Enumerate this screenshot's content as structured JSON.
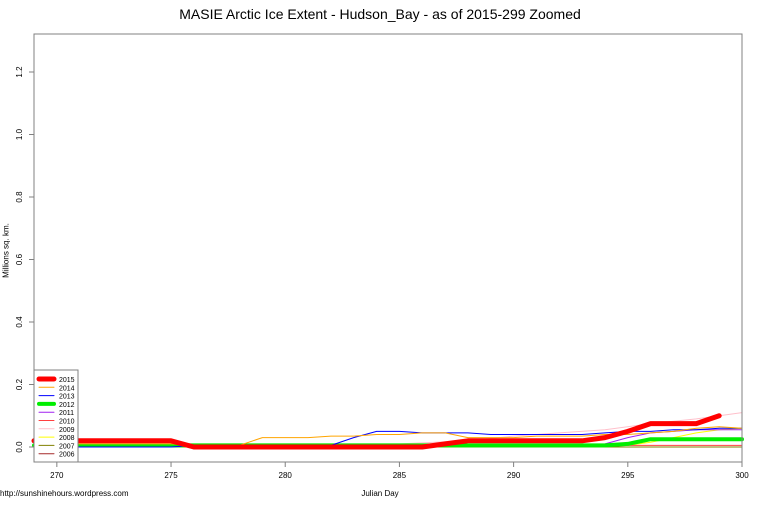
{
  "chart_data": {
    "type": "line",
    "title": "MASIE Arctic Ice Extent - Hudson_Bay - as of 2015-299 Zoomed",
    "xlabel": "Julian Day",
    "ylabel": "Millions sq. km.",
    "credit": "http://sunshinehours.wordpress.com",
    "xlim": [
      269,
      300
    ],
    "ylim": [
      -0.05,
      1.32
    ],
    "x_ticks": [
      270,
      275,
      280,
      285,
      290,
      295,
      300
    ],
    "y_ticks": [
      "0.0",
      "0.2",
      "0.4",
      "0.6",
      "0.8",
      "1.0",
      "1.2"
    ],
    "grid": false,
    "legend_position": "bottom-left",
    "series": [
      {
        "name": "2015",
        "color": "#ff0000",
        "width": 5,
        "x": [
          269,
          270,
          271,
          272,
          273,
          274,
          275,
          276,
          277,
          278,
          279,
          280,
          281,
          282,
          283,
          284,
          285,
          286,
          287,
          288,
          289,
          290,
          291,
          292,
          293,
          294,
          295,
          296,
          297,
          298,
          299
        ],
        "values": [
          0.02,
          0.02,
          0.02,
          0.02,
          0.02,
          0.02,
          0.02,
          0.0,
          0.0,
          0.0,
          0.0,
          0.0,
          0.0,
          0.0,
          0.0,
          0.0,
          0.0,
          0.0,
          0.01,
          0.02,
          0.02,
          0.02,
          0.02,
          0.02,
          0.02,
          0.03,
          0.05,
          0.075,
          0.075,
          0.075,
          0.1
        ]
      },
      {
        "name": "2014",
        "color": "#ffa500",
        "width": 1,
        "x": [
          269,
          270,
          271,
          272,
          273,
          274,
          275,
          276,
          277,
          278,
          279,
          280,
          281,
          282,
          283,
          284,
          285,
          286,
          287,
          288,
          289,
          290,
          291,
          292,
          293,
          294,
          295,
          296,
          297,
          298,
          299,
          300
        ],
        "values": [
          0.01,
          0.01,
          0.01,
          0.01,
          0.01,
          0.01,
          0.01,
          0.005,
          0.005,
          0.005,
          0.03,
          0.03,
          0.03,
          0.035,
          0.035,
          0.04,
          0.04,
          0.045,
          0.045,
          0.03,
          0.03,
          0.03,
          0.035,
          0.035,
          0.035,
          0.04,
          0.04,
          0.045,
          0.05,
          0.06,
          0.065,
          0.06
        ]
      },
      {
        "name": "2013",
        "color": "#0000ff",
        "width": 1,
        "x": [
          269,
          270,
          271,
          272,
          273,
          274,
          275,
          276,
          277,
          278,
          279,
          280,
          281,
          282,
          283,
          284,
          285,
          286,
          287,
          288,
          289,
          290,
          291,
          292,
          293,
          294,
          295,
          296,
          297,
          298,
          299,
          300
        ],
        "values": [
          0.0,
          0.0,
          0.0,
          0.0,
          0.0,
          0.0,
          0.0,
          0.005,
          0.005,
          0.005,
          0.005,
          0.005,
          0.005,
          0.005,
          0.03,
          0.05,
          0.05,
          0.045,
          0.045,
          0.045,
          0.04,
          0.04,
          0.04,
          0.04,
          0.04,
          0.045,
          0.05,
          0.05,
          0.055,
          0.055,
          0.06,
          0.06
        ]
      },
      {
        "name": "2012",
        "color": "#00ee00",
        "width": 4,
        "x": [
          269,
          270,
          271,
          272,
          273,
          274,
          275,
          276,
          277,
          278,
          279,
          280,
          281,
          282,
          283,
          284,
          285,
          286,
          287,
          288,
          289,
          290,
          291,
          292,
          293,
          294,
          295,
          296,
          297,
          298,
          299,
          300
        ],
        "values": [
          0.005,
          0.005,
          0.005,
          0.005,
          0.005,
          0.005,
          0.005,
          0.005,
          0.005,
          0.005,
          0.005,
          0.005,
          0.005,
          0.005,
          0.005,
          0.005,
          0.005,
          0.005,
          0.005,
          0.005,
          0.005,
          0.005,
          0.005,
          0.005,
          0.005,
          0.005,
          0.01,
          0.025,
          0.025,
          0.025,
          0.025,
          0.025
        ]
      },
      {
        "name": "2011",
        "color": "#a020f0",
        "width": 1,
        "x": [
          269,
          275,
          280,
          285,
          290,
          293,
          294,
          295,
          296,
          297,
          298,
          299,
          300
        ],
        "values": [
          0.005,
          0.005,
          0.005,
          0.005,
          0.005,
          0.005,
          0.01,
          0.03,
          0.045,
          0.05,
          0.055,
          0.055,
          0.055
        ]
      },
      {
        "name": "2010",
        "color": "#ff4040",
        "width": 1,
        "x": [
          269,
          275,
          280,
          285,
          290,
          295,
          300
        ],
        "values": [
          0.005,
          0.005,
          0.005,
          0.005,
          0.005,
          0.005,
          0.005
        ]
      },
      {
        "name": "2009",
        "color": "#ffc0cb",
        "width": 1,
        "x": [
          269,
          275,
          280,
          285,
          288,
          290,
          292,
          294,
          296,
          298,
          300
        ],
        "values": [
          0.01,
          0.01,
          0.01,
          0.01,
          0.02,
          0.035,
          0.045,
          0.055,
          0.075,
          0.09,
          0.11
        ]
      },
      {
        "name": "2008",
        "color": "#ffff00",
        "width": 1,
        "x": [
          269,
          275,
          280,
          285,
          290,
          295,
          296,
          297,
          298,
          299,
          300
        ],
        "values": [
          0.005,
          0.005,
          0.005,
          0.005,
          0.005,
          0.005,
          0.015,
          0.03,
          0.045,
          0.055,
          0.06
        ]
      },
      {
        "name": "2007",
        "color": "#808000",
        "width": 1,
        "x": [
          269,
          275,
          280,
          285,
          290,
          295,
          300
        ],
        "values": [
          0.0,
          0.0,
          0.0,
          0.0,
          0.0,
          0.0,
          0.0
        ]
      },
      {
        "name": "2006",
        "color": "#a52a2a",
        "width": 1,
        "x": [
          269,
          275,
          280,
          285,
          290,
          295,
          300
        ],
        "values": [
          0.0,
          0.0,
          0.0,
          0.0,
          0.0,
          0.0,
          0.0
        ]
      }
    ]
  }
}
